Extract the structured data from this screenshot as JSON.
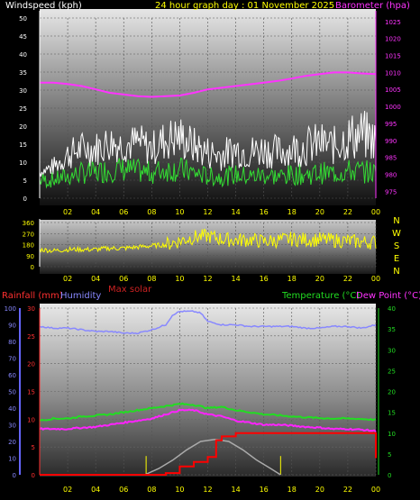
{
  "chart_data": [
    {
      "type": "line",
      "panel": "wind-barometer",
      "title": "24 hour graph day : 01 November 2025",
      "left_label": "Windspeed (kph)",
      "right_label": "Barometer (hpa)",
      "x_ticks": [
        "02",
        "04",
        "06",
        "08",
        "10",
        "12",
        "14",
        "16",
        "18",
        "20",
        "22",
        "00"
      ],
      "y_left_ticks": [
        "0",
        "5",
        "10",
        "15",
        "20",
        "25",
        "30",
        "35",
        "40",
        "45",
        "50"
      ],
      "y_right_ticks": [
        "975",
        "980",
        "985",
        "990",
        "995",
        "1000",
        "1005",
        "1010",
        "1015",
        "1020",
        "1025"
      ],
      "ylim_left": [
        0,
        50
      ],
      "ylim_right": [
        973,
        1026
      ],
      "grid": true,
      "series": [
        {
          "key": "barometer",
          "color": "#ff33ff",
          "x": [
            0,
            1,
            2,
            3,
            4,
            5,
            6,
            7,
            8,
            9,
            10,
            11,
            12,
            13,
            14,
            15,
            16,
            17,
            18,
            19,
            20,
            21,
            22,
            23,
            24
          ],
          "values": [
            1007,
            1007,
            1006.6,
            1006,
            1005,
            1004,
            1003.5,
            1003,
            1002.8,
            1003,
            1003.2,
            1004,
            1005,
            1005.5,
            1006,
            1006.5,
            1007,
            1007.5,
            1008.2,
            1009,
            1009.5,
            1010,
            1010,
            1009.7,
            1009.5
          ]
        },
        {
          "key": "gust",
          "color": "#ffffff",
          "x": [
            0,
            1,
            2,
            3,
            4,
            5,
            6,
            7,
            8,
            9,
            10,
            11,
            12,
            13,
            14,
            15,
            16,
            17,
            18,
            19,
            20,
            21,
            22,
            23,
            24
          ],
          "values": [
            8,
            10,
            14,
            16,
            16,
            18,
            17,
            18,
            16,
            19,
            20,
            17,
            15,
            14,
            16,
            15,
            16,
            15,
            16,
            17,
            18,
            17,
            20,
            21,
            19
          ]
        },
        {
          "key": "average",
          "color": "#33dd33",
          "x": [
            0,
            1,
            2,
            3,
            4,
            5,
            6,
            7,
            8,
            9,
            10,
            11,
            12,
            13,
            14,
            15,
            16,
            17,
            18,
            19,
            20,
            21,
            22,
            23,
            24
          ],
          "values": [
            5,
            5,
            6,
            7,
            7,
            8,
            8,
            7.5,
            7,
            8,
            8,
            7,
            6,
            6,
            6.5,
            6,
            6.5,
            6,
            6.5,
            6.5,
            7,
            7,
            7.5,
            7.5,
            7
          ]
        }
      ]
    },
    {
      "type": "line",
      "panel": "wind-direction",
      "x_ticks": [
        "02",
        "04",
        "06",
        "08",
        "10",
        "12",
        "14",
        "16",
        "18",
        "20",
        "22",
        "00"
      ],
      "y_ticks": [
        "0",
        "90",
        "180",
        "270",
        "360"
      ],
      "ylim": [
        0,
        360
      ],
      "compass": [
        "N",
        "W",
        "S",
        "E",
        "N"
      ],
      "series": [
        {
          "key": "direction",
          "color": "#ffff00",
          "x": [
            0,
            1,
            2,
            3,
            4,
            5,
            6,
            7,
            8,
            9,
            10,
            11,
            12,
            13,
            14,
            15,
            16,
            17,
            18,
            19,
            20,
            21,
            22,
            23,
            24
          ],
          "values": [
            140,
            130,
            140,
            140,
            140,
            150,
            150,
            160,
            170,
            180,
            210,
            240,
            250,
            225,
            215,
            220,
            205,
            215,
            225,
            220,
            220,
            215,
            210,
            200,
            200
          ]
        }
      ]
    },
    {
      "type": "line",
      "panel": "rain-temp",
      "labels": {
        "rainfall": "Rainfall (mm)",
        "humidity": "Humidity",
        "max_solar": "Max solar",
        "temperature": "Temperature (°C)",
        "dew_point": "Dew Point (°C)"
      },
      "x_ticks": [
        "02",
        "04",
        "06",
        "08",
        "10",
        "12",
        "14",
        "16",
        "18",
        "20",
        "22",
        "00"
      ],
      "humidity_ticks": [
        "0",
        "10",
        "20",
        "30",
        "40",
        "50",
        "60",
        "70",
        "80",
        "90",
        "100"
      ],
      "rain_ticks": [
        "0",
        "5",
        "10",
        "15",
        "20",
        "25",
        "30"
      ],
      "temp_ticks": [
        "0",
        "5",
        "10",
        "15",
        "20",
        "25",
        "30",
        "35",
        "40"
      ],
      "ylim_humidity": [
        0,
        100
      ],
      "ylim_rain": [
        0,
        30
      ],
      "ylim_temp": [
        0,
        40
      ],
      "series": [
        {
          "key": "humidity",
          "color": "#8888ff",
          "x": [
            0,
            1,
            2,
            3,
            4,
            5,
            6,
            7,
            8,
            9,
            9.5,
            10,
            10.5,
            11,
            11.5,
            12,
            13,
            14,
            15,
            16,
            17,
            18,
            19,
            20,
            21,
            22,
            23,
            24
          ],
          "values": [
            89,
            88,
            88,
            87,
            86,
            86,
            85,
            85,
            87,
            90,
            96,
            98,
            98,
            98,
            97,
            92,
            90,
            90,
            89,
            89,
            89,
            89,
            88,
            88,
            89,
            89,
            88,
            90
          ]
        },
        {
          "key": "temperature",
          "color": "#22dd22",
          "x": [
            0,
            1,
            2,
            3,
            4,
            5,
            6,
            7,
            8,
            9,
            10,
            11,
            12,
            13,
            14,
            15,
            16,
            17,
            18,
            19,
            20,
            21,
            22,
            23,
            24
          ],
          "values": [
            13,
            13.5,
            13.5,
            14,
            14.2,
            14.5,
            15,
            15.5,
            16,
            16.5,
            17,
            16.8,
            16,
            16.3,
            15.5,
            15,
            14.5,
            14.3,
            14,
            13.8,
            13.6,
            13.5,
            13.5,
            13.4,
            13.2
          ]
        },
        {
          "key": "dew_point",
          "color": "#ff22ff",
          "x": [
            0,
            1,
            2,
            3,
            4,
            5,
            6,
            7,
            8,
            9,
            10,
            11,
            12,
            13,
            14,
            15,
            16,
            17,
            18,
            19,
            20,
            21,
            22,
            23,
            24
          ],
          "values": [
            11,
            11,
            11,
            11.3,
            11.5,
            12,
            12.5,
            13,
            13.5,
            14.5,
            15.5,
            15.5,
            14.5,
            14,
            13,
            12.5,
            12,
            12,
            11.8,
            11.5,
            11.3,
            11,
            11,
            10.8,
            10.5
          ]
        },
        {
          "key": "max_solar",
          "color": "#aaaaaa",
          "x": [
            7.5,
            8.5,
            9.5,
            10.5,
            11.5,
            12.5,
            13.5,
            14.5,
            15.5,
            16.5,
            17.2
          ],
          "values": [
            0,
            1.5,
            3.5,
            6,
            8,
            8.5,
            8,
            6,
            3.5,
            1.5,
            0
          ]
        },
        {
          "key": "rainfall",
          "color": "#ff0000",
          "x": [
            0,
            9,
            10,
            11,
            11.6,
            12,
            12.6,
            13,
            14,
            18,
            23,
            24
          ],
          "values": [
            0,
            0.3,
            1.5,
            2.3,
            2.3,
            3.2,
            6.2,
            6.9,
            7.5,
            7.5,
            7.5,
            3
          ]
        }
      ]
    }
  ]
}
